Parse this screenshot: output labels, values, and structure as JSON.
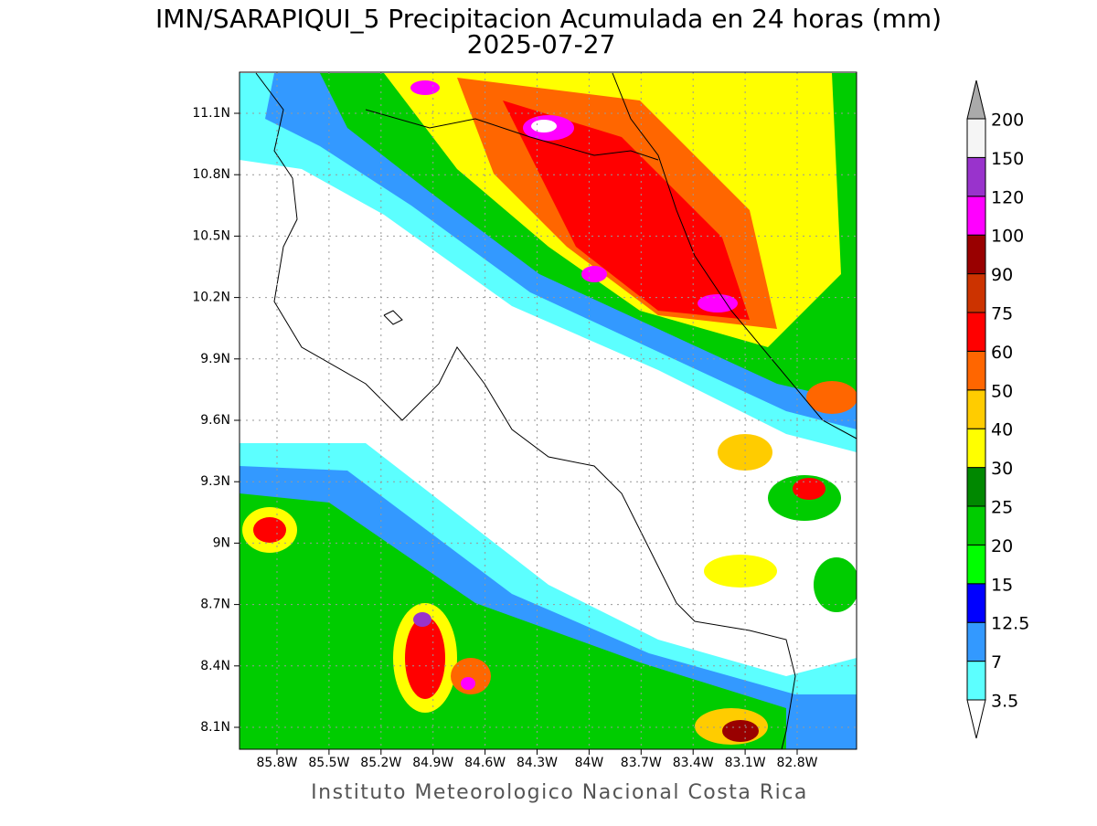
{
  "title": "IMN/SARAPIQUI_5 Precipitacion Acumulada en 24 horas (mm)",
  "subtitle": "2025-07-27",
  "map": {
    "lat_ticks": [
      {
        "value": 11.1,
        "label": "11.1N"
      },
      {
        "value": 10.8,
        "label": "10.8N"
      },
      {
        "value": 10.5,
        "label": "10.5N"
      },
      {
        "value": 10.2,
        "label": "10.2N"
      },
      {
        "value": 9.9,
        "label": "9.9N"
      },
      {
        "value": 9.6,
        "label": "9.6N"
      },
      {
        "value": 9.3,
        "label": "9.3N"
      },
      {
        "value": 9,
        "label": "9N"
      },
      {
        "value": 8.7,
        "label": "8.7N"
      },
      {
        "value": 8.4,
        "label": "8.4N"
      },
      {
        "value": 8.1,
        "label": "8.1N"
      }
    ],
    "lon_ticks": [
      {
        "value": -85.8,
        "label": "85.8W"
      },
      {
        "value": -85.5,
        "label": "85.5W"
      },
      {
        "value": -85.2,
        "label": "85.2W"
      },
      {
        "value": -84.9,
        "label": "84.9W"
      },
      {
        "value": -84.6,
        "label": "84.6W"
      },
      {
        "value": -84.3,
        "label": "84.3W"
      },
      {
        "value": -84,
        "label": "84W"
      },
      {
        "value": -83.7,
        "label": "83.7W"
      },
      {
        "value": -83.4,
        "label": "83.4W"
      },
      {
        "value": -83.1,
        "label": "83.1W"
      },
      {
        "value": -82.8,
        "label": "82.8W"
      }
    ]
  },
  "colorbar": {
    "levels": [
      3.5,
      7,
      12.5,
      15,
      20,
      25,
      30,
      40,
      50,
      60,
      75,
      90,
      100,
      120,
      150,
      200
    ],
    "colors": [
      "#5cffff",
      "#3399ff",
      "#0000ff",
      "#00ff00",
      "#00cc00",
      "#008800",
      "#ffff00",
      "#ffcc00",
      "#ff6600",
      "#ff0000",
      "#cc3300",
      "#990000",
      "#ff00ff",
      "#9933cc",
      "#f5f5f5"
    ],
    "over_color": "#aaaaaa",
    "under_color": "#ffffff"
  },
  "footer": "Instituto Meteorologico Nacional Costa Rica"
}
